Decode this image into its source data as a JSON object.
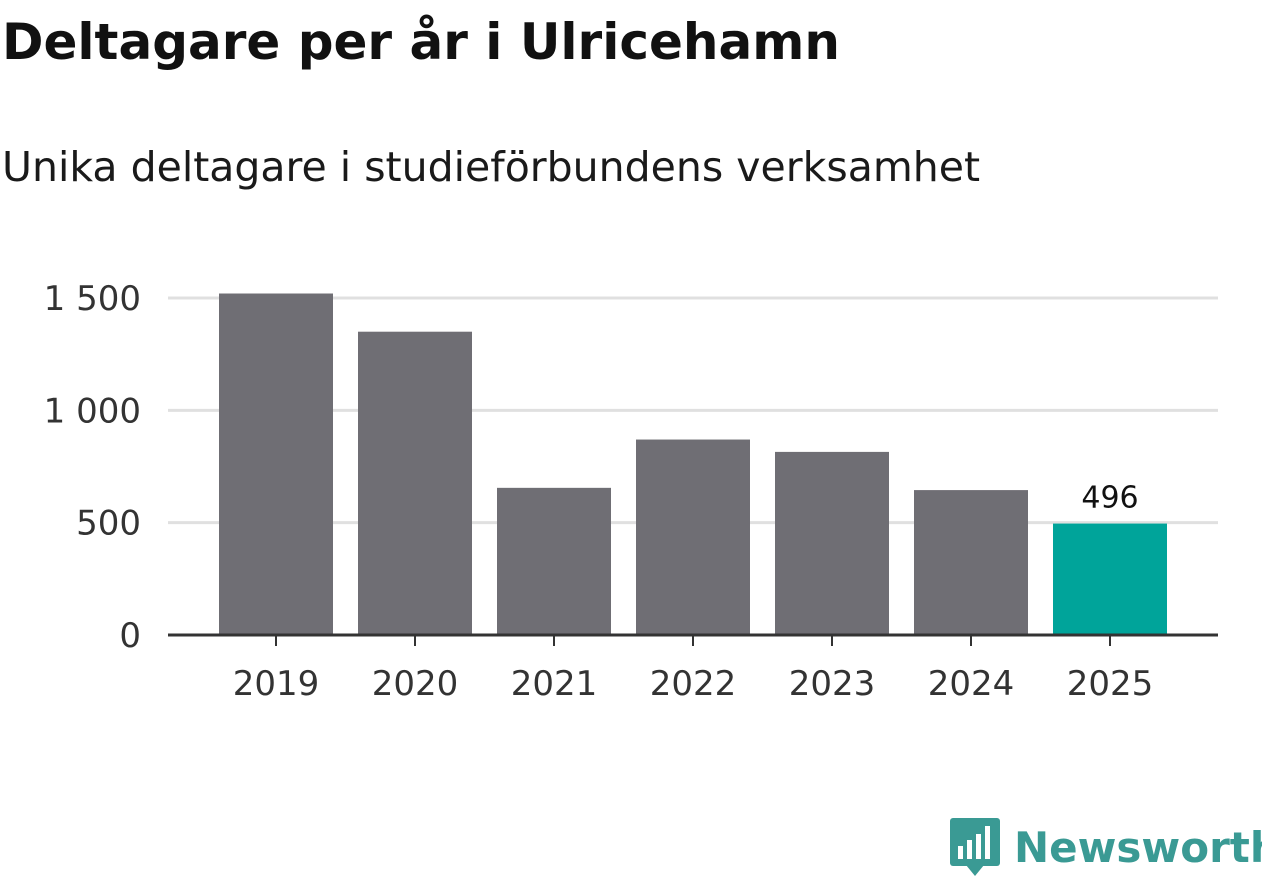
{
  "chart_data": {
    "type": "bar",
    "title": "Deltagare per år i Ulricehamn",
    "subtitle": "Unika deltagare i studieförbundens verksamhet",
    "categories": [
      "2019",
      "2020",
      "2021",
      "2022",
      "2023",
      "2024",
      "2025"
    ],
    "values": [
      1520,
      1350,
      655,
      870,
      815,
      645,
      496
    ],
    "highlight_index": 6,
    "data_labels": [
      {
        "index": 6,
        "text": "496"
      }
    ],
    "y_ticks": [
      {
        "value": 0,
        "label": "0"
      },
      {
        "value": 500,
        "label": "500"
      },
      {
        "value": 1000,
        "label": "1 000"
      },
      {
        "value": 1500,
        "label": "1 500"
      }
    ],
    "ylim": [
      0,
      1500
    ],
    "xlabel": "",
    "ylabel": "",
    "grid": true,
    "colors": {
      "bar": "#6f6e74",
      "highlight": "#00a49a",
      "grid": "#e0e0e0",
      "axis": "#333333"
    }
  },
  "brand": {
    "name": "Newsworthy",
    "icon": "newsworthy-logo-icon",
    "color": "#3a9a94"
  }
}
